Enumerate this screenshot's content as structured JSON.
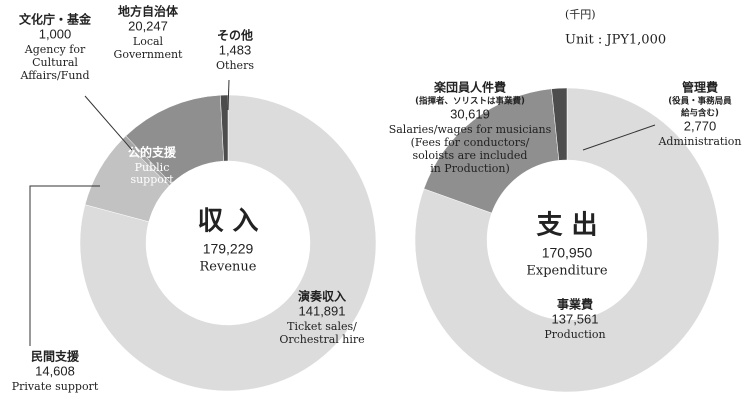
{
  "unit": "(千円)",
  "unit_en": "Unit : JPY1,000",
  "chart_data": [
    {
      "type": "pie",
      "title": "収 入",
      "title_en": "Revenue",
      "total": 179229,
      "total_label": "179,229",
      "group_label": "公的支援",
      "group_label_en": [
        "Public",
        "support"
      ],
      "categories": [
        "演奏収入",
        "民間支援",
        "文化庁・基金",
        "地方自治体",
        "その他"
      ],
      "categories_en": [
        [
          "Ticket sales/",
          "Orchestral hire"
        ],
        [
          "Private support"
        ],
        [
          "Agency for",
          "Cultural",
          "Affairs/Fund"
        ],
        [
          "Local",
          "Government"
        ],
        [
          "Others"
        ]
      ],
      "category_notes": [
        null,
        null,
        null,
        null,
        null
      ],
      "values": [
        141891,
        14608,
        1000,
        20247,
        1483
      ],
      "value_labels": [
        "141,891",
        "14,608",
        "1,000",
        "20,247",
        "1,483"
      ],
      "colors": [
        "#dcdcdc",
        "#c2c2c2",
        "#a6a6a6",
        "#8f8f8f",
        "#4d4d4d"
      ]
    },
    {
      "type": "pie",
      "title": "支 出",
      "title_en": "Expenditure",
      "total": 170950,
      "total_label": "170,950",
      "categories": [
        "事業費",
        "楽団員人件費",
        "管理費"
      ],
      "categories_en": [
        [
          "Production"
        ],
        [
          "Salaries/wages for musicians",
          "(Fees for conductors/",
          "soloists are included",
          "in Production)"
        ],
        [
          "Administration"
        ]
      ],
      "category_notes": [
        null,
        [
          "(指揮者、ソリストは事業費)"
        ],
        [
          "(役員・事務局員",
          "給与含む)"
        ]
      ],
      "values": [
        137561,
        30619,
        2770
      ],
      "value_labels": [
        "137,561",
        "30,619",
        "2,770"
      ],
      "colors": [
        "#dcdcdc",
        "#8f8f8f",
        "#4d4d4d"
      ]
    }
  ]
}
